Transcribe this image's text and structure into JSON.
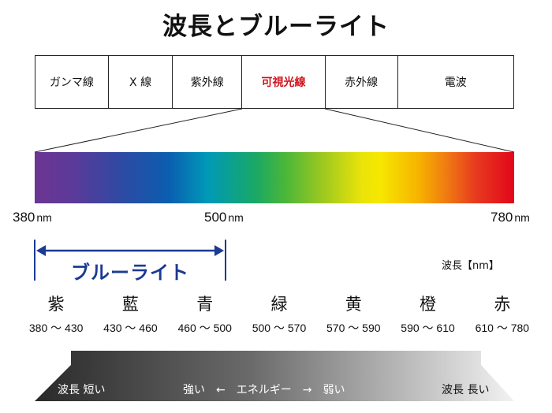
{
  "title": "波長とブルーライト",
  "bands": [
    {
      "label": "ガンマ線",
      "active": false
    },
    {
      "label": "X 線",
      "active": false
    },
    {
      "label": "紫外線",
      "active": false
    },
    {
      "label": "可視光線",
      "active": true
    },
    {
      "label": "赤外線",
      "active": false
    },
    {
      "label": "電波",
      "active": false
    }
  ],
  "wavelengths": {
    "start": "380",
    "mid": "500",
    "end": "780",
    "unit": "nm"
  },
  "blue_light_label": "ブルーライト",
  "unit_note": "波長【nm】",
  "colors": [
    {
      "name": "紫",
      "range": "380 ～ 430"
    },
    {
      "name": "藍",
      "range": "430 ～ 460"
    },
    {
      "name": "青",
      "range": "460 ～ 500"
    },
    {
      "name": "緑",
      "range": "500 ～ 570"
    },
    {
      "name": "黄",
      "range": "570 ～ 590"
    },
    {
      "name": "橙",
      "range": "590 ～ 610"
    },
    {
      "name": "赤",
      "range": "610 ～ 780"
    }
  ],
  "energy_bar": {
    "left": "波長 短い",
    "middle": "強い　←　エネルギー　→　弱い",
    "right": "波長 長い"
  },
  "accent_colors": {
    "visible_light": "#d0121b",
    "blue_light": "#1b3a93"
  }
}
